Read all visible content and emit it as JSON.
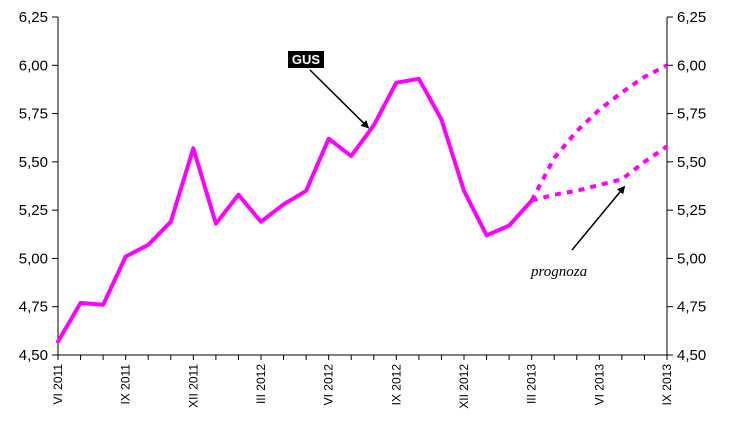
{
  "chart_data": {
    "type": "line",
    "x": [
      "VI 2011",
      "VII 2011",
      "VIII 2011",
      "IX 2011",
      "X 2011",
      "XI 2011",
      "XII 2011",
      "I 2012",
      "II 2012",
      "III 2012",
      "IV 2012",
      "V 2012",
      "VI 2012",
      "VII 2012",
      "VIII 2012",
      "IX 2012",
      "X 2012",
      "XI 2012",
      "XII 2012",
      "I 2013",
      "II 2013",
      "III 2013",
      "IV 2013",
      "V 2013",
      "VI 2013",
      "VII 2013",
      "VIII 2013",
      "IX 2013"
    ],
    "x_tick_labels": [
      "VI 2011",
      "IX 2011",
      "XII 2011",
      "III 2012",
      "VI 2012",
      "IX 2012",
      "XII 2012",
      "III 2013",
      "VI 2013",
      "IX 2013"
    ],
    "ylim": [
      4.5,
      6.25
    ],
    "y_ticks": [
      "4,50",
      "4,75",
      "5,00",
      "5,25",
      "5,50",
      "5,75",
      "6,00",
      "6,25"
    ],
    "y_tick_values": [
      4.5,
      4.75,
      5.0,
      5.25,
      5.5,
      5.75,
      6.0,
      6.25
    ],
    "grid": false,
    "series": [
      {
        "name": "GUS",
        "style": "solid",
        "color": "#ff00ff",
        "values": [
          4.57,
          4.77,
          4.76,
          5.01,
          5.07,
          5.19,
          5.57,
          5.18,
          5.33,
          5.19,
          5.28,
          5.35,
          5.62,
          5.53,
          5.69,
          5.91,
          5.93,
          5.72,
          5.35,
          5.12,
          5.17,
          5.3,
          null,
          null,
          null,
          null,
          null,
          null
        ]
      },
      {
        "style": "dotted",
        "color": "#ff00ff",
        "values": [
          null,
          null,
          null,
          null,
          null,
          null,
          null,
          null,
          null,
          null,
          null,
          null,
          null,
          null,
          null,
          null,
          null,
          null,
          null,
          null,
          null,
          5.3,
          5.52,
          5.66,
          5.77,
          5.86,
          5.94,
          6.0
        ]
      },
      {
        "style": "dotted",
        "color": "#ff00ff",
        "values": [
          null,
          null,
          null,
          null,
          null,
          null,
          null,
          null,
          null,
          null,
          null,
          null,
          null,
          null,
          null,
          null,
          null,
          null,
          null,
          null,
          null,
          5.3,
          5.33,
          5.35,
          5.38,
          5.41,
          5.5,
          5.58
        ]
      }
    ],
    "annotations": [
      {
        "text": "GUS",
        "target_series": 0,
        "target_x": "VIII 2012"
      },
      {
        "text": "prognoza",
        "target_series": 2,
        "target_x": "VII 2013"
      }
    ]
  }
}
